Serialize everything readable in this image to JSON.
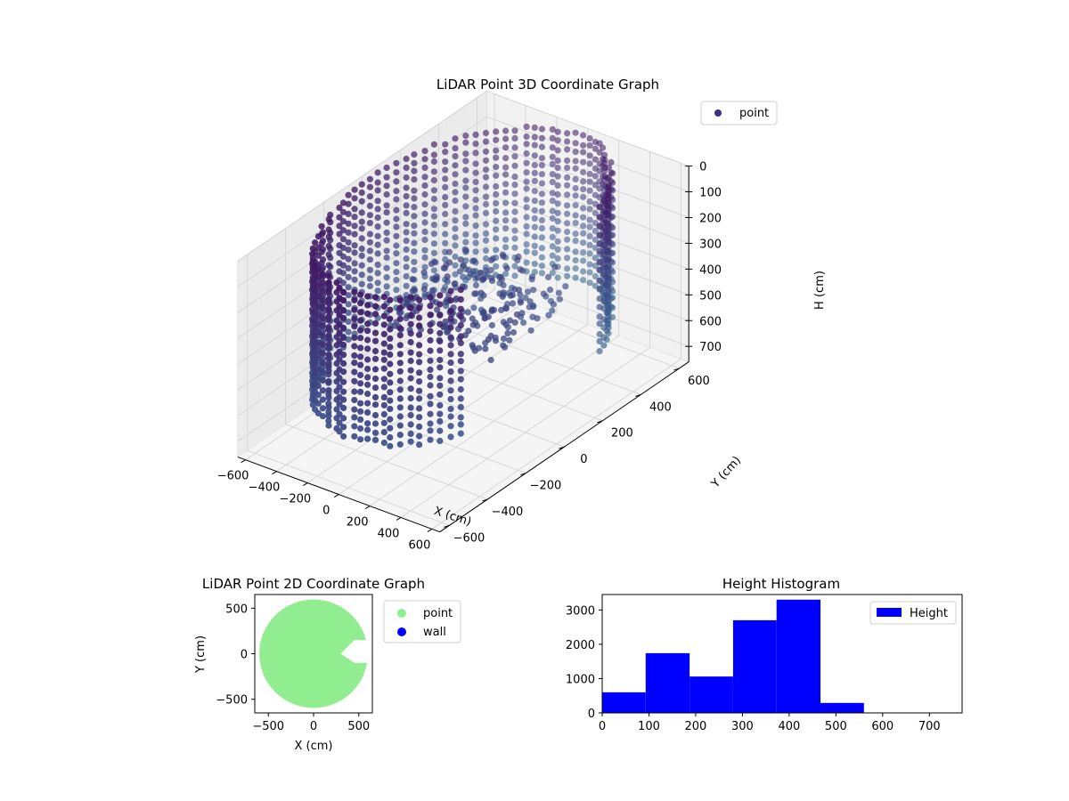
{
  "chart_data": [
    {
      "type": "scatter3d",
      "title": "LiDAR Point 3D Coordinate Graph",
      "xlabel": "X (cm)",
      "ylabel": "Y (cm)",
      "zlabel": "H (cm)",
      "xlim": [
        -650,
        650
      ],
      "ylim": [
        -650,
        650
      ],
      "zlim": [
        0,
        760
      ],
      "z_inverted": true,
      "xticks": [
        -600,
        -400,
        -200,
        0,
        200,
        400,
        600
      ],
      "yticks": [
        -600,
        -400,
        -200,
        0,
        200,
        400,
        600
      ],
      "zticks": [
        0,
        100,
        200,
        300,
        400,
        500,
        600,
        700
      ],
      "legend": {
        "placement": "upper-right",
        "entries": [
          "point"
        ]
      },
      "grid": true,
      "colormap": "viridis",
      "series": [
        {
          "name": "point",
          "marker_color": "#3b2f7f",
          "wall": {
            "radius": 600,
            "open_angle_from_deg": -40,
            "open_angle_to_deg": 25,
            "z_from": 0,
            "z_to": 560
          },
          "interior_cluster": {
            "x_range": [
              -350,
              350
            ],
            "y_range": [
              -150,
              300
            ],
            "z_range": [
              300,
              450
            ]
          }
        }
      ]
    },
    {
      "type": "scatter",
      "title": "LiDAR Point 2D Coordinate Graph",
      "xlabel": "X (cm)",
      "ylabel": "Y (cm)",
      "xlim": [
        -650,
        650
      ],
      "ylim": [
        -650,
        650
      ],
      "xticks": [
        -500,
        0,
        500
      ],
      "yticks": [
        -500,
        0,
        500
      ],
      "legend": {
        "placement": "outside-right",
        "entries": [
          "point",
          "wall"
        ]
      },
      "series": [
        {
          "name": "point",
          "color": "#90ee90",
          "region": {
            "radius": 600,
            "notch": [
              [
                650,
                150
              ],
              [
                450,
                150
              ],
              [
                300,
                0
              ],
              [
                450,
                -100
              ],
              [
                650,
                -100
              ]
            ]
          }
        },
        {
          "name": "wall",
          "color": "#0000ff"
        }
      ]
    },
    {
      "type": "bar",
      "title": "Height Histogram",
      "xlabel": "",
      "ylabel": "",
      "xlim": [
        0,
        770
      ],
      "ylim": [
        0,
        3450
      ],
      "xticks": [
        0,
        100,
        200,
        300,
        400,
        500,
        600,
        700
      ],
      "yticks": [
        0,
        1000,
        2000,
        3000
      ],
      "color": "#0000ff",
      "legend": {
        "placement": "upper-right",
        "entries": [
          "Height"
        ]
      },
      "bins": [
        {
          "from": 0,
          "to": 93,
          "count": 600
        },
        {
          "from": 93,
          "to": 187,
          "count": 1740
        },
        {
          "from": 187,
          "to": 280,
          "count": 1060
        },
        {
          "from": 280,
          "to": 373,
          "count": 2700
        },
        {
          "from": 373,
          "to": 467,
          "count": 3300
        },
        {
          "from": 467,
          "to": 560,
          "count": 290
        },
        {
          "from": 560,
          "to": 653,
          "count": 0
        },
        {
          "from": 653,
          "to": 747,
          "count": 0
        }
      ]
    }
  ]
}
